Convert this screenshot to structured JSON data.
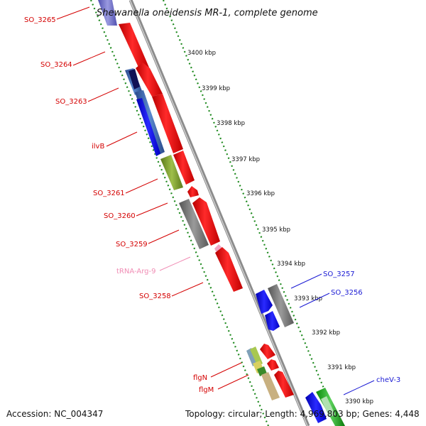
{
  "title": "Shewanella oneidensis MR-1, complete genome",
  "footer": {
    "accession": "Accession: NC_004347",
    "summary": "Topology: circular; Length: 4,969,803 bp; Genes: 4,448"
  },
  "scale_labels": [
    "3400 kbp",
    "3399 kbp",
    "3398 kbp",
    "3397 kbp",
    "3396 kbp",
    "3395 kbp",
    "3394 kbp",
    "3393 kbp",
    "3392 kbp",
    "3391 kbp",
    "3390 kbp"
  ],
  "gene_labels": [
    {
      "text": "SO_3265",
      "color": "#d40000"
    },
    {
      "text": "SO_3264",
      "color": "#d40000"
    },
    {
      "text": "SO_3263",
      "color": "#d40000"
    },
    {
      "text": "ilvB",
      "color": "#d40000"
    },
    {
      "text": "SO_3261",
      "color": "#d40000"
    },
    {
      "text": "SO_3260",
      "color": "#d40000"
    },
    {
      "text": "SO_3259",
      "color": "#d40000"
    },
    {
      "text": "tRNA-Arg-9",
      "color": "#f08cb4"
    },
    {
      "text": "SO_3258",
      "color": "#d40000"
    },
    {
      "text": "SO_3257",
      "color": "#1a1ad4"
    },
    {
      "text": "SO_3256",
      "color": "#1a1ad4"
    },
    {
      "text": "flgN",
      "color": "#d40000"
    },
    {
      "text": "flgM",
      "color": "#d40000"
    },
    {
      "text": "cheV-3",
      "color": "#1a1ad4"
    }
  ],
  "colors": {
    "forward_gene": "#ff1a1a",
    "reverse_gene": "#1a1aff",
    "grey_gene": "#808080",
    "olive_gene": "#7a9a30",
    "backbone": "#8c8c8c",
    "ruler_dots": "#1f8a1f"
  }
}
